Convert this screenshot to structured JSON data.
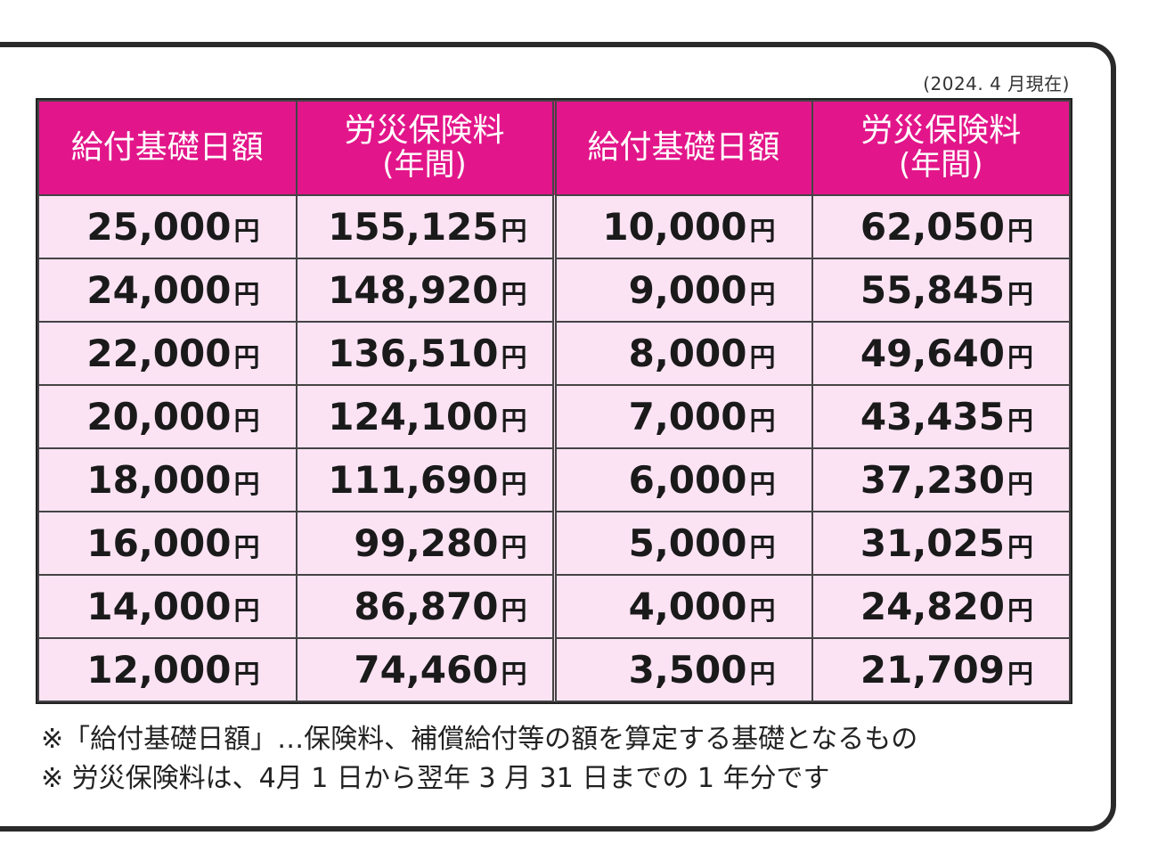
{
  "as_of": "(2024. 4 月現在)",
  "headers": {
    "daily_base": "給付基礎日額",
    "premium_line1": "労災保険料",
    "premium_line2": "(年間)"
  },
  "unit": "円",
  "left_rows": [
    {
      "daily": "25,000",
      "premium": "155,125"
    },
    {
      "daily": "24,000",
      "premium": "148,920"
    },
    {
      "daily": "22,000",
      "premium": "136,510"
    },
    {
      "daily": "20,000",
      "premium": "124,100"
    },
    {
      "daily": "18,000",
      "premium": "111,690"
    },
    {
      "daily": "16,000",
      "premium": "99,280"
    },
    {
      "daily": "14,000",
      "premium": "86,870"
    },
    {
      "daily": "12,000",
      "premium": "74,460"
    }
  ],
  "right_rows": [
    {
      "daily": "10,000",
      "premium": "62,050"
    },
    {
      "daily": "9,000",
      "premium": "55,845"
    },
    {
      "daily": "8,000",
      "premium": "49,640"
    },
    {
      "daily": "7,000",
      "premium": "43,435"
    },
    {
      "daily": "6,000",
      "premium": "37,230"
    },
    {
      "daily": "5,000",
      "premium": "31,025"
    },
    {
      "daily": "4,000",
      "premium": "24,820"
    },
    {
      "daily": "3,500",
      "premium": "21,709"
    }
  ],
  "notes": [
    "※「給付基礎日額」…保険料、補償給付等の額を算定する基礎となるもの",
    "※ 労災保険料は、4月 1 日から翌年 3 月 31 日までの 1 年分です"
  ],
  "colors": {
    "header_bg": "#e2168a",
    "cell_bg": "#fbe3f4"
  }
}
